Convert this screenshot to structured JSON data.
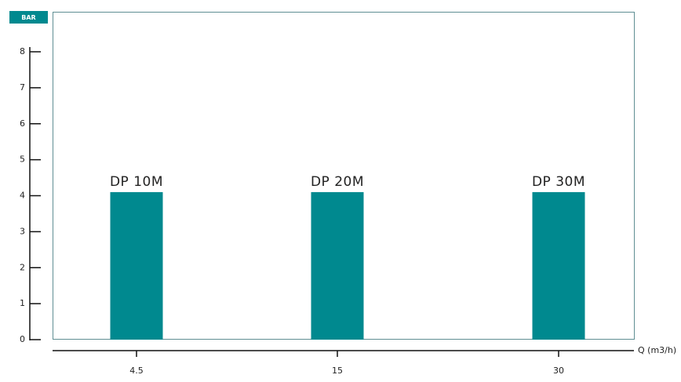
{
  "chart_data": {
    "type": "bar",
    "y_label": "BAR",
    "x_label": "Q (m3/h)",
    "categories": [
      "4.5",
      "15",
      "30"
    ],
    "bar_labels": [
      "DP 10M",
      "DP 20M",
      "DP 30M"
    ],
    "values": [
      4.1,
      4.1,
      4.1
    ],
    "color": "#00898f",
    "ylim": [
      0,
      8
    ],
    "yticks": [
      0,
      1,
      2,
      3,
      4,
      5,
      6,
      7,
      8
    ]
  }
}
